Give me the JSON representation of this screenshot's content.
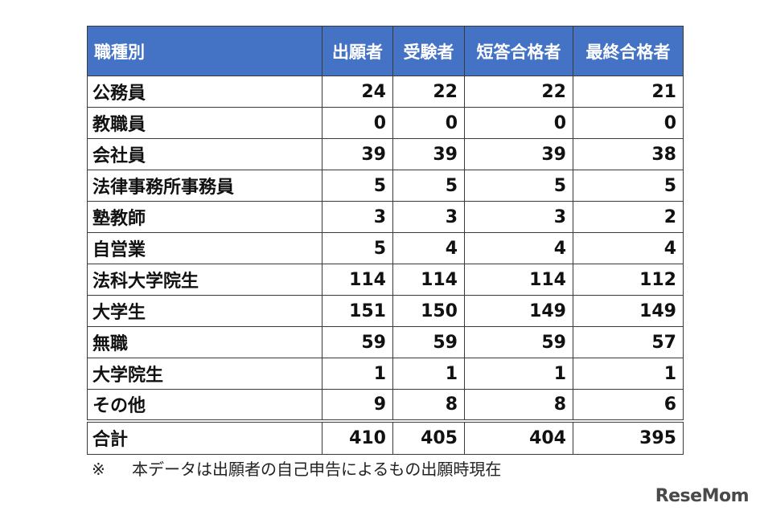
{
  "table": {
    "columns": [
      "職種別",
      "出願者",
      "受験者",
      "短答合格者",
      "最終合格者"
    ],
    "rows": [
      {
        "category": "公務員",
        "values": [
          "24",
          "22",
          "22",
          "21"
        ]
      },
      {
        "category": "教職員",
        "values": [
          "0",
          "0",
          "0",
          "0"
        ]
      },
      {
        "category": "会社員",
        "values": [
          "39",
          "39",
          "39",
          "38"
        ]
      },
      {
        "category": "法律事務所事務員",
        "values": [
          "5",
          "5",
          "5",
          "5"
        ]
      },
      {
        "category": "塾教師",
        "values": [
          "3",
          "3",
          "3",
          "2"
        ]
      },
      {
        "category": "自営業",
        "values": [
          "5",
          "4",
          "4",
          "4"
        ]
      },
      {
        "category": "法科大学院生",
        "values": [
          "114",
          "114",
          "114",
          "112"
        ]
      },
      {
        "category": "大学生",
        "values": [
          "151",
          "150",
          "149",
          "149"
        ]
      },
      {
        "category": "無職",
        "values": [
          "59",
          "59",
          "59",
          "57"
        ]
      },
      {
        "category": "大学院生",
        "values": [
          "1",
          "1",
          "1",
          "1"
        ]
      },
      {
        "category": "その他",
        "values": [
          "9",
          "8",
          "8",
          "6"
        ]
      }
    ],
    "total": {
      "category": "合計",
      "values": [
        "410",
        "405",
        "404",
        "395"
      ]
    }
  },
  "footnote": {
    "mark": "※",
    "text": "本データは出願者の自己申告によるもの出願時現在"
  },
  "logo": {
    "text": "ReseMom"
  },
  "colors": {
    "header_bg": "#4472c4",
    "header_text": "#ffffff",
    "border": "#3a3a3a"
  }
}
